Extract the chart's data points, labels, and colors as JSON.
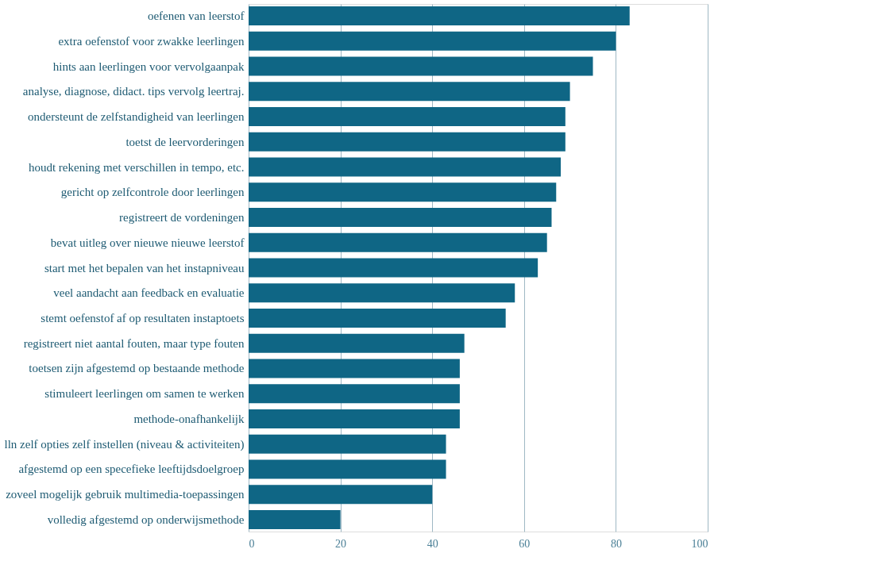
{
  "chart_data": {
    "type": "bar",
    "orientation": "horizontal",
    "categories": [
      "oefenen van leerstof",
      "extra oefenstof voor zwakke leerlingen",
      "hints aan leerlingen voor vervolgaanpak",
      "analyse, diagnose, didact. tips vervolg leertraj.",
      "ondersteunt de zelfstandigheid van leerlingen",
      "toetst de leervorderingen",
      "houdt rekening met verschillen in tempo, etc.",
      "gericht op zelfcontrole door leerlingen",
      "registreert de vordeningen",
      "bevat uitleg over nieuwe nieuwe leerstof",
      "start met het bepalen van het instapniveau",
      "veel aandacht aan feedback en evaluatie",
      "stemt oefenstof af op resultaten instaptoets",
      "registreert niet aantal fouten, maar type fouten",
      "toetsen zijn afgestemd op bestaande methode",
      "stimuleert leerlingen om samen te werken",
      "methode-onafhankelijk",
      "lln zelf opties zelf instellen (niveau & activiteiten)",
      "afgestemd op een specefieke leeftijdsdoelgroep",
      "zoveel mogelijk gebruik multimedia-toepassingen",
      "volledig afgestemd op onderwijsmethode"
    ],
    "values": [
      83,
      80,
      75,
      70,
      69,
      69,
      68,
      67,
      66,
      65,
      63,
      58,
      56,
      47,
      46,
      46,
      46,
      43,
      43,
      40,
      20
    ],
    "color": "#0f6685",
    "xlim": [
      0,
      100
    ],
    "xticks": [
      0,
      20,
      40,
      60,
      80,
      100
    ],
    "grid": "x"
  }
}
